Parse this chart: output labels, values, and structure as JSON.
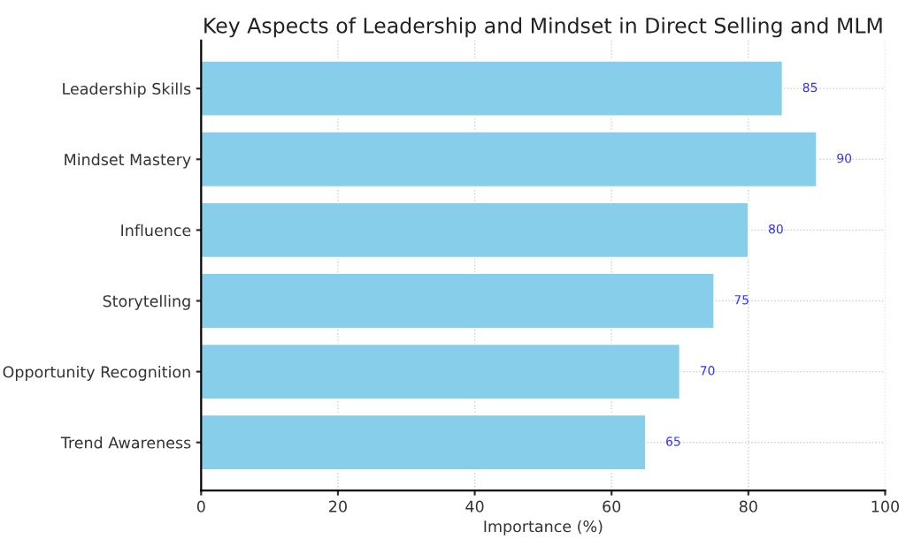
{
  "chart_data": {
    "type": "bar",
    "orientation": "horizontal",
    "title": "Key Aspects of Leadership and Mindset in Direct Selling and MLM",
    "xlabel": "Importance (%)",
    "categories": [
      "Leadership Skills",
      "Mindset Mastery",
      "Influence",
      "Storytelling",
      "Opportunity Recognition",
      "Trend Awareness"
    ],
    "values": [
      85,
      90,
      80,
      75,
      70,
      65
    ],
    "color": "#87ceeb",
    "data_labels": true,
    "xlim": [
      0,
      100
    ],
    "xticks": [
      0,
      20,
      40,
      60,
      80,
      100
    ],
    "grid": true,
    "line_style": "dotted"
  }
}
